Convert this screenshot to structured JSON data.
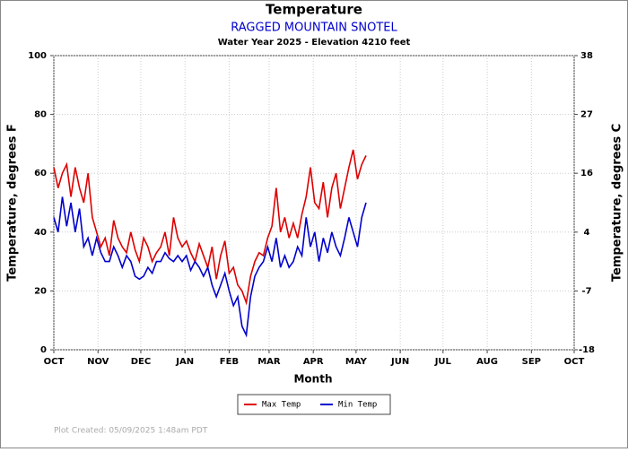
{
  "chart_data": {
    "type": "line",
    "title": "Temperature",
    "subtitle": "RAGGED MOUNTAIN SNOTEL",
    "subtitle2": "Water Year 2025 -  Elevation 4210 feet",
    "xlabel": "Month",
    "ylabel": "Temperature, degrees F",
    "y2label": "Temperature, degrees C",
    "footer": "Plot Created: 05/09/2025 1:48am PDT",
    "x": [
      0,
      3,
      6,
      9,
      12,
      15,
      18,
      21,
      24,
      27,
      30,
      33,
      36,
      39,
      42,
      45,
      48,
      51,
      54,
      57,
      60,
      63,
      66,
      69,
      72,
      75,
      78,
      81,
      84,
      87,
      90,
      93,
      96,
      99,
      102,
      105,
      108,
      111,
      114,
      117,
      120,
      123,
      126,
      129,
      132,
      135,
      138,
      141,
      144,
      147,
      150,
      153,
      156,
      159,
      162,
      165,
      168,
      171,
      174,
      177,
      180,
      183,
      186,
      189,
      192,
      195,
      198,
      201,
      204,
      207,
      210,
      213,
      216,
      219
    ],
    "series": [
      {
        "name": "Max Temp",
        "color": "#dd0000",
        "values": [
          62,
          55,
          60,
          63,
          52,
          62,
          55,
          50,
          60,
          45,
          40,
          35,
          38,
          32,
          44,
          38,
          35,
          33,
          40,
          34,
          30,
          38,
          35,
          30,
          33,
          35,
          40,
          32,
          45,
          38,
          35,
          37,
          33,
          30,
          36,
          32,
          28,
          35,
          24,
          32,
          37,
          26,
          28,
          22,
          20,
          16,
          25,
          30,
          33,
          32,
          38,
          42,
          55,
          40,
          45,
          38,
          43,
          38,
          46,
          52,
          62,
          50,
          48,
          57,
          45,
          55,
          60,
          48,
          55,
          62,
          68,
          58,
          63,
          66
        ]
      },
      {
        "name": "Min Temp",
        "color": "#0000cc",
        "values": [
          45,
          40,
          52,
          42,
          50,
          40,
          48,
          35,
          38,
          32,
          38,
          33,
          30,
          30,
          35,
          32,
          28,
          32,
          30,
          25,
          24,
          25,
          28,
          26,
          30,
          30,
          33,
          31,
          30,
          32,
          30,
          32,
          27,
          30,
          28,
          25,
          28,
          22,
          18,
          22,
          26,
          20,
          15,
          18,
          8,
          5,
          18,
          25,
          28,
          30,
          35,
          30,
          38,
          28,
          32,
          28,
          30,
          35,
          32,
          45,
          35,
          40,
          30,
          38,
          33,
          40,
          35,
          32,
          38,
          45,
          40,
          35,
          45,
          50
        ]
      }
    ],
    "xlim": [
      0,
      365
    ],
    "xticks": [
      {
        "value": 0,
        "label": "OCT"
      },
      {
        "value": 31,
        "label": "NOV"
      },
      {
        "value": 61,
        "label": "DEC"
      },
      {
        "value": 92,
        "label": "JAN"
      },
      {
        "value": 123,
        "label": "FEB"
      },
      {
        "value": 151,
        "label": "MAR"
      },
      {
        "value": 182,
        "label": "APR"
      },
      {
        "value": 212,
        "label": "MAY"
      },
      {
        "value": 243,
        "label": "JUN"
      },
      {
        "value": 273,
        "label": "JUL"
      },
      {
        "value": 304,
        "label": "AUG"
      },
      {
        "value": 335,
        "label": "SEP"
      },
      {
        "value": 365,
        "label": "OCT"
      }
    ],
    "ylim": [
      0,
      100
    ],
    "yticks": [
      0,
      20,
      40,
      60,
      80,
      100
    ],
    "y2lim": [
      -17.78,
      37.78
    ],
    "y2ticks": [
      {
        "value": -17.78,
        "label": "-18"
      },
      {
        "value": -6.67,
        "label": "-7"
      },
      {
        "value": 4.44,
        "label": "4"
      },
      {
        "value": 15.56,
        "label": "16"
      },
      {
        "value": 26.67,
        "label": "27"
      },
      {
        "value": 37.78,
        "label": "38"
      }
    ],
    "grid": true
  }
}
